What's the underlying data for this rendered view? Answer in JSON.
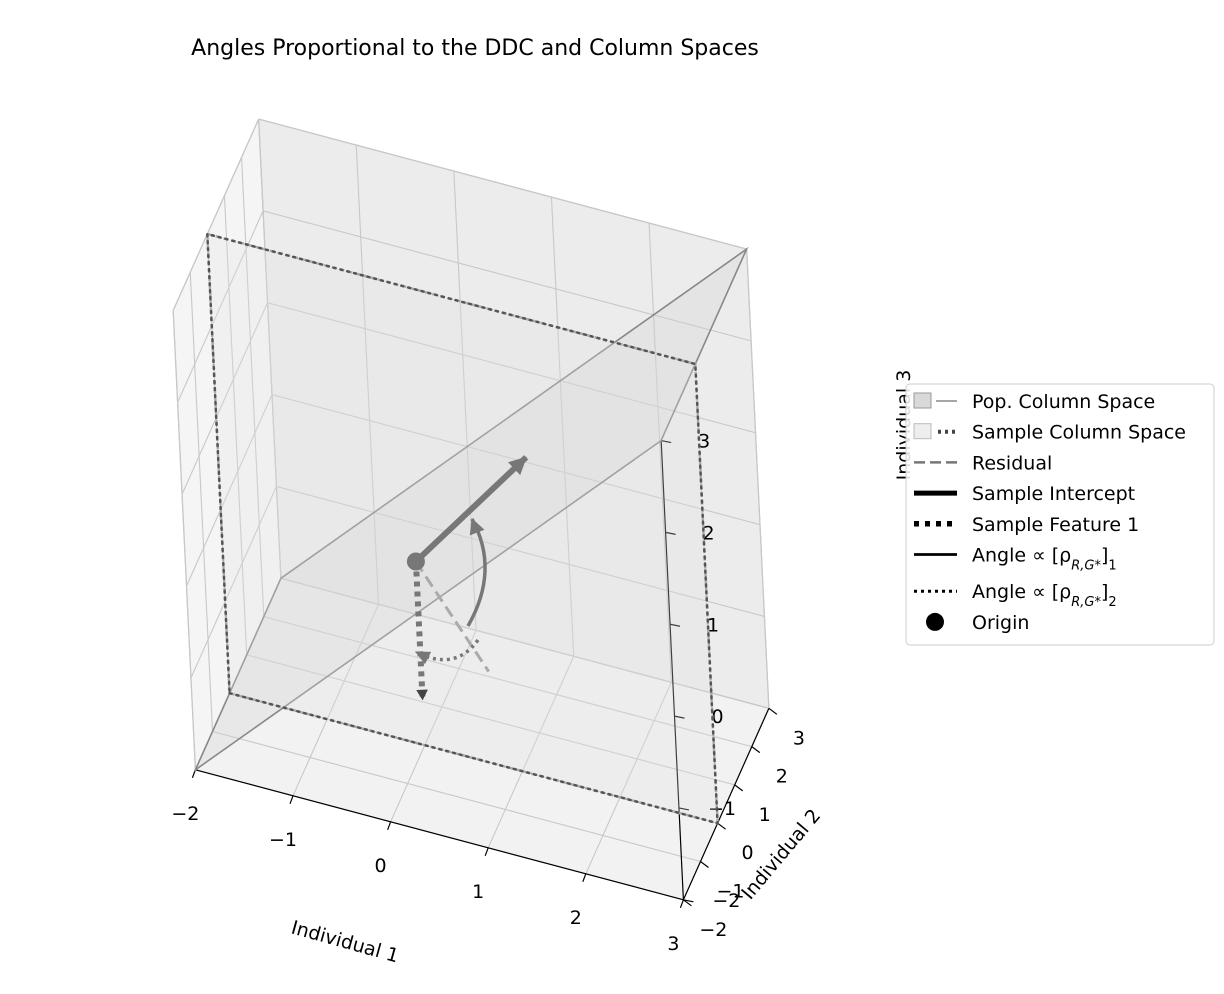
{
  "chart_data": {
    "type": "3d-line",
    "title": "Angles Proportional to the DDC and Column Spaces",
    "axes": {
      "x": {
        "label": "Individual 1",
        "range": [
          -2,
          3
        ],
        "ticks": [
          -2,
          -1,
          0,
          1,
          2,
          3
        ],
        "tick_labels": [
          "−2",
          "−1",
          "0",
          "1",
          "2",
          "3"
        ]
      },
      "y": {
        "label": "Individual 2",
        "range": [
          -2,
          3
        ],
        "ticks": [
          -2,
          -1,
          0,
          1,
          2,
          3
        ],
        "tick_labels": [
          "−2",
          "−1",
          "0",
          "1",
          "2",
          "3"
        ]
      },
      "z": {
        "label": "Individual 3",
        "range": [
          -2,
          3
        ],
        "ticks": [
          -2,
          -1,
          0,
          1,
          2,
          3
        ],
        "tick_labels": [
          "−2",
          "−1",
          "0",
          "1",
          "2",
          "3"
        ]
      }
    },
    "grid": true,
    "legend_position": "right",
    "legend": [
      {
        "label": "Pop. Column Space",
        "key": "pop"
      },
      {
        "label": "Sample Column Space",
        "key": "sample"
      },
      {
        "label": "Residual",
        "key": "residual"
      },
      {
        "label": "Sample Intercept",
        "key": "intercept"
      },
      {
        "label": "Sample Feature 1",
        "key": "feature"
      },
      {
        "label": "Angle ∝ [ρ",
        "sub": "R,G*",
        "tail": "]",
        "tail_sub": "1",
        "key": "angle1"
      },
      {
        "label": "Angle ∝ [ρ",
        "sub": "R,G*",
        "tail": "]",
        "tail_sub": "2",
        "key": "angle2"
      },
      {
        "label": "Origin",
        "key": "origin"
      }
    ],
    "pop_column_space": [
      [
        -2,
        -2,
        -2
      ],
      [
        3,
        -2,
        3
      ],
      [
        3,
        3,
        3
      ],
      [
        -2,
        3,
        -2
      ]
    ],
    "sample_column_space": [
      [
        -2,
        0,
        -2
      ],
      [
        3,
        0,
        -2
      ],
      [
        3,
        0,
        3
      ],
      [
        -2,
        0,
        3
      ]
    ],
    "origin": [
      0,
      0,
      0
    ],
    "sample_intercept": [
      [
        0,
        0,
        0
      ],
      [
        1,
        1,
        1
      ]
    ],
    "sample_feature_1": [
      [
        0,
        0,
        0
      ],
      [
        0,
        0,
        -1.5
      ]
    ],
    "residual": [
      [
        0,
        0,
        0
      ],
      [
        0.7,
        0,
        -1.0
      ]
    ],
    "colors": {
      "pop": "#888888",
      "sample": "#555555",
      "residual": "#aaaaaa",
      "intercept": "#777777",
      "feature": "#777777",
      "angle": "#777777",
      "origin": "#777777"
    }
  }
}
